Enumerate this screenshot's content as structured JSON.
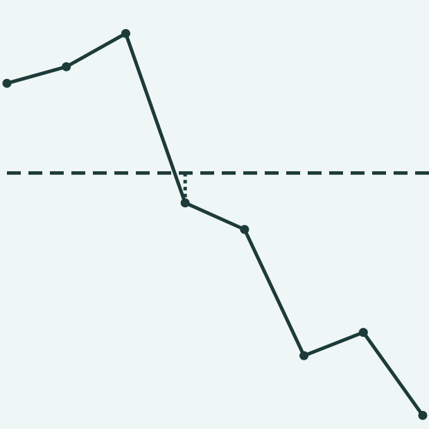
{
  "colors": {
    "background": "#eff7f6",
    "ink": "#1c3b39"
  },
  "chart_data": {
    "type": "line",
    "title": "",
    "xlabel": "",
    "ylabel": "",
    "x": [
      0,
      1,
      2,
      3,
      4,
      5,
      6,
      7
    ],
    "series": [
      {
        "values": [
          6.7,
          7.2,
          8.2,
          3.1,
          2.3,
          -1.5,
          -0.8,
          -3.3
        ],
        "line_style": "solid",
        "markers": true
      }
    ],
    "reference_line": {
      "value": 4.0,
      "line_style": "dashed"
    },
    "annotation": {
      "type": "dotted-connector",
      "x": 3,
      "from_value": 4.0,
      "to_value": 3.1
    },
    "xlim": [
      0,
      7
    ],
    "ylim": [
      -3.5,
      9.0
    ],
    "grid": false,
    "legend": "none",
    "axes_visible": false
  }
}
